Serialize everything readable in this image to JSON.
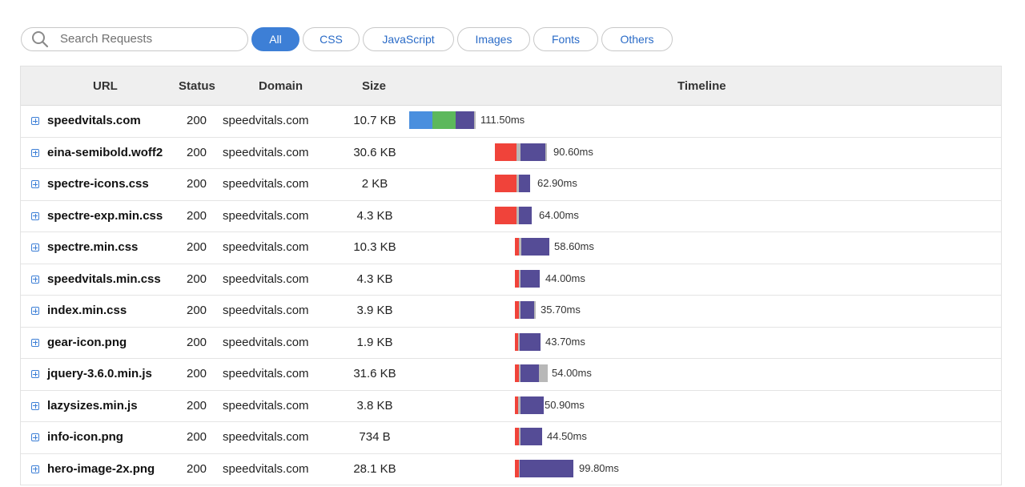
{
  "search": {
    "placeholder": "Search Requests"
  },
  "filters": [
    "All",
    "CSS",
    "JavaScript",
    "Images",
    "Fonts",
    "Others"
  ],
  "active_filter": "All",
  "columns": {
    "url": "URL",
    "status": "Status",
    "domain": "Domain",
    "size": "Size",
    "timeline": "Timeline"
  },
  "colors": {
    "accent": "#3d7fd6",
    "dns": "#4a8fde",
    "connect": "#5cb85c",
    "blocked": "#f0433a",
    "waiting": "#554c96",
    "download": "#b8b8b8"
  },
  "rows": [
    {
      "url": "speedvitals.com",
      "status": "200",
      "domain": "speedvitals.com",
      "size": "10.7 KB",
      "time": "111.50ms"
    },
    {
      "url": "eina-semibold.woff2",
      "status": "200",
      "domain": "speedvitals.com",
      "size": "30.6 KB",
      "time": "90.60ms"
    },
    {
      "url": "spectre-icons.css",
      "status": "200",
      "domain": "speedvitals.com",
      "size": "2 KB",
      "time": "62.90ms"
    },
    {
      "url": "spectre-exp.min.css",
      "status": "200",
      "domain": "speedvitals.com",
      "size": "4.3 KB",
      "time": "64.00ms"
    },
    {
      "url": "spectre.min.css",
      "status": "200",
      "domain": "speedvitals.com",
      "size": "10.3 KB",
      "time": "58.60ms"
    },
    {
      "url": "speedvitals.min.css",
      "status": "200",
      "domain": "speedvitals.com",
      "size": "4.3 KB",
      "time": "44.00ms"
    },
    {
      "url": "index.min.css",
      "status": "200",
      "domain": "speedvitals.com",
      "size": "3.9 KB",
      "time": "35.70ms"
    },
    {
      "url": "gear-icon.png",
      "status": "200",
      "domain": "speedvitals.com",
      "size": "1.9 KB",
      "time": "43.70ms"
    },
    {
      "url": "jquery-3.6.0.min.js",
      "status": "200",
      "domain": "speedvitals.com",
      "size": "31.6 KB",
      "time": "54.00ms"
    },
    {
      "url": "lazysizes.min.js",
      "status": "200",
      "domain": "speedvitals.com",
      "size": "3.8 KB",
      "time": "50.90ms"
    },
    {
      "url": "info-icon.png",
      "status": "200",
      "domain": "speedvitals.com",
      "size": "734 B",
      "time": "44.50ms"
    },
    {
      "url": "hero-image-2x.png",
      "status": "200",
      "domain": "speedvitals.com",
      "size": "28.1 KB",
      "time": "99.80ms"
    }
  ]
}
